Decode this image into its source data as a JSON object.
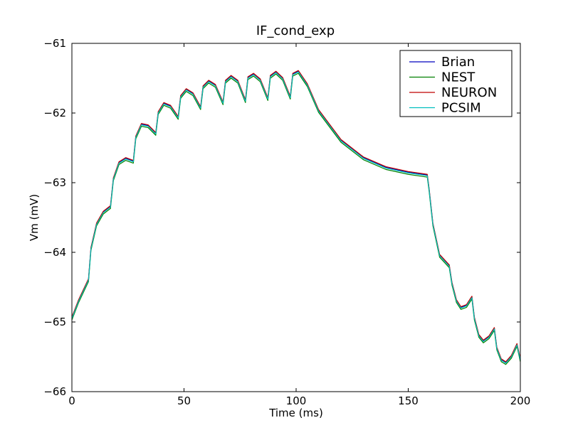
{
  "chart_data": {
    "type": "line",
    "title": "IF_cond_exp",
    "xlabel": "Time (ms)",
    "ylabel": "Vm (mV)",
    "xlim": [
      0,
      200
    ],
    "ylim": [
      -66,
      -61
    ],
    "x_ticks": [
      0,
      50,
      100,
      150,
      200
    ],
    "x_tick_labels": [
      "0",
      "50",
      "100",
      "150",
      "200"
    ],
    "y_ticks": [
      -66,
      -65,
      -64,
      -63,
      -62,
      -61
    ],
    "y_tick_labels": [
      "−66",
      "−65",
      "−64",
      "−63",
      "−62",
      "−61"
    ],
    "grid": false,
    "legend_position": "top-right",
    "series": [
      {
        "name": "Brian",
        "color": "#0000bf",
        "offset": 0.01
      },
      {
        "name": "NEST",
        "color": "#008000",
        "offset": -0.02
      },
      {
        "name": "NEURON",
        "color": "#bf0000",
        "offset": 0.02
      },
      {
        "name": "PCSIM",
        "color": "#00bfbf",
        "offset": 0
      }
    ],
    "points": [
      [
        0,
        -64.95
      ],
      [
        3,
        -64.7
      ],
      [
        7.4,
        -64.4
      ],
      [
        8.5,
        -63.95
      ],
      [
        11,
        -63.6
      ],
      [
        14,
        -63.43
      ],
      [
        17.2,
        -63.35
      ],
      [
        18.5,
        -62.95
      ],
      [
        21,
        -62.72
      ],
      [
        24,
        -62.66
      ],
      [
        27.4,
        -62.7
      ],
      [
        28.5,
        -62.35
      ],
      [
        31,
        -62.17
      ],
      [
        34,
        -62.19
      ],
      [
        37.4,
        -62.3
      ],
      [
        38.5,
        -62.0
      ],
      [
        41,
        -61.87
      ],
      [
        44,
        -61.91
      ],
      [
        47.4,
        -62.07
      ],
      [
        48.5,
        -61.77
      ],
      [
        51,
        -61.67
      ],
      [
        54,
        -61.73
      ],
      [
        57.4,
        -61.93
      ],
      [
        58.5,
        -61.63
      ],
      [
        61,
        -61.55
      ],
      [
        64,
        -61.61
      ],
      [
        67.4,
        -61.86
      ],
      [
        68.5,
        -61.55
      ],
      [
        71,
        -61.48
      ],
      [
        74,
        -61.55
      ],
      [
        77.4,
        -61.83
      ],
      [
        78.5,
        -61.5
      ],
      [
        81,
        -61.45
      ],
      [
        84,
        -61.53
      ],
      [
        87.4,
        -61.8
      ],
      [
        88.5,
        -61.48
      ],
      [
        91,
        -61.42
      ],
      [
        94,
        -61.51
      ],
      [
        97.4,
        -61.78
      ],
      [
        98.5,
        -61.45
      ],
      [
        101,
        -61.41
      ],
      [
        105,
        -61.6
      ],
      [
        110,
        -61.97
      ],
      [
        120,
        -62.4
      ],
      [
        130,
        -62.65
      ],
      [
        140,
        -62.79
      ],
      [
        150,
        -62.86
      ],
      [
        158.5,
        -62.9
      ],
      [
        159.3,
        -63.1
      ],
      [
        161,
        -63.6
      ],
      [
        164,
        -64.05
      ],
      [
        168.3,
        -64.2
      ],
      [
        169.5,
        -64.45
      ],
      [
        171.5,
        -64.7
      ],
      [
        173.5,
        -64.8
      ],
      [
        176,
        -64.77
      ],
      [
        178.4,
        -64.65
      ],
      [
        179.5,
        -64.95
      ],
      [
        181.5,
        -65.2
      ],
      [
        183.5,
        -65.28
      ],
      [
        186,
        -65.22
      ],
      [
        188.4,
        -65.1
      ],
      [
        189.5,
        -65.38
      ],
      [
        191.5,
        -65.55
      ],
      [
        193.5,
        -65.59
      ],
      [
        196,
        -65.5
      ],
      [
        198.5,
        -65.33
      ],
      [
        200,
        -65.55
      ]
    ]
  }
}
